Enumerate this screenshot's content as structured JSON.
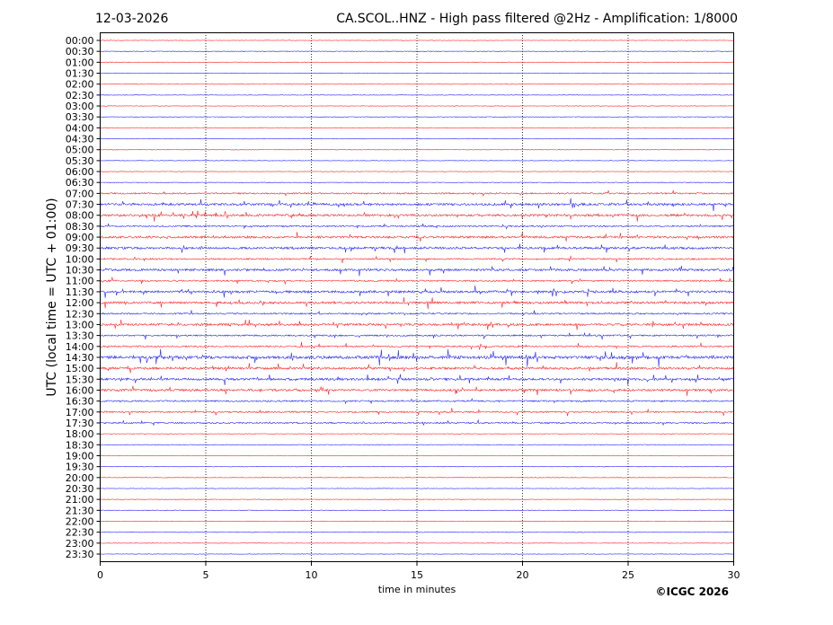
{
  "chart_data": {
    "type": "line",
    "title_left": "12-03-2026",
    "title": "CA.SCOL..HNZ - High pass filtered @2Hz - Amplification: 1/8000",
    "xlabel": "time in minutes",
    "ylabel": "UTC (local time = UTC + 01:00)",
    "xlim": [
      0,
      30
    ],
    "xticks": [
      "0",
      "5",
      "10",
      "15",
      "20",
      "25",
      "30"
    ],
    "vertical_grid_minutes": [
      5,
      10,
      15,
      20,
      25
    ],
    "grid": "vertical dotted",
    "row_colors": [
      "#ff0000",
      "#0000ff"
    ],
    "rows": [
      {
        "label": "00:00",
        "activity": 0
      },
      {
        "label": "00:30",
        "activity": 0
      },
      {
        "label": "01:00",
        "activity": 0
      },
      {
        "label": "01:30",
        "activity": 0
      },
      {
        "label": "02:00",
        "activity": 0
      },
      {
        "label": "02:30",
        "activity": 0
      },
      {
        "label": "03:00",
        "activity": 0
      },
      {
        "label": "03:30",
        "activity": 0
      },
      {
        "label": "04:00",
        "activity": 0
      },
      {
        "label": "04:30",
        "activity": 0
      },
      {
        "label": "05:00",
        "activity": 0
      },
      {
        "label": "05:30",
        "activity": 0
      },
      {
        "label": "06:00",
        "activity": 0
      },
      {
        "label": "06:30",
        "activity": 0
      },
      {
        "label": "07:00",
        "activity": 1
      },
      {
        "label": "07:30",
        "activity": 2
      },
      {
        "label": "08:00",
        "activity": 2
      },
      {
        "label": "08:30",
        "activity": 1
      },
      {
        "label": "09:00",
        "activity": 2
      },
      {
        "label": "09:30",
        "activity": 2
      },
      {
        "label": "10:00",
        "activity": 1
      },
      {
        "label": "10:30",
        "activity": 2
      },
      {
        "label": "11:00",
        "activity": 1
      },
      {
        "label": "11:30",
        "activity": 2
      },
      {
        "label": "12:00",
        "activity": 2
      },
      {
        "label": "12:30",
        "activity": 1
      },
      {
        "label": "13:00",
        "activity": 2
      },
      {
        "label": "13:30",
        "activity": 1
      },
      {
        "label": "14:00",
        "activity": 1
      },
      {
        "label": "14:30",
        "activity": 3
      },
      {
        "label": "15:00",
        "activity": 2
      },
      {
        "label": "15:30",
        "activity": 2
      },
      {
        "label": "16:00",
        "activity": 2
      },
      {
        "label": "16:30",
        "activity": 1
      },
      {
        "label": "17:00",
        "activity": 1
      },
      {
        "label": "17:30",
        "activity": 1
      },
      {
        "label": "18:00",
        "activity": 0
      },
      {
        "label": "18:30",
        "activity": 0
      },
      {
        "label": "19:00",
        "activity": 0
      },
      {
        "label": "19:30",
        "activity": 0
      },
      {
        "label": "20:00",
        "activity": 0
      },
      {
        "label": "20:30",
        "activity": 0
      },
      {
        "label": "21:00",
        "activity": 0
      },
      {
        "label": "21:30",
        "activity": 0
      },
      {
        "label": "22:00",
        "activity": 0
      },
      {
        "label": "22:30",
        "activity": 0
      },
      {
        "label": "23:00",
        "activity": 0
      },
      {
        "label": "23:30",
        "activity": 0
      }
    ]
  },
  "copyright": "©ICGC 2026"
}
